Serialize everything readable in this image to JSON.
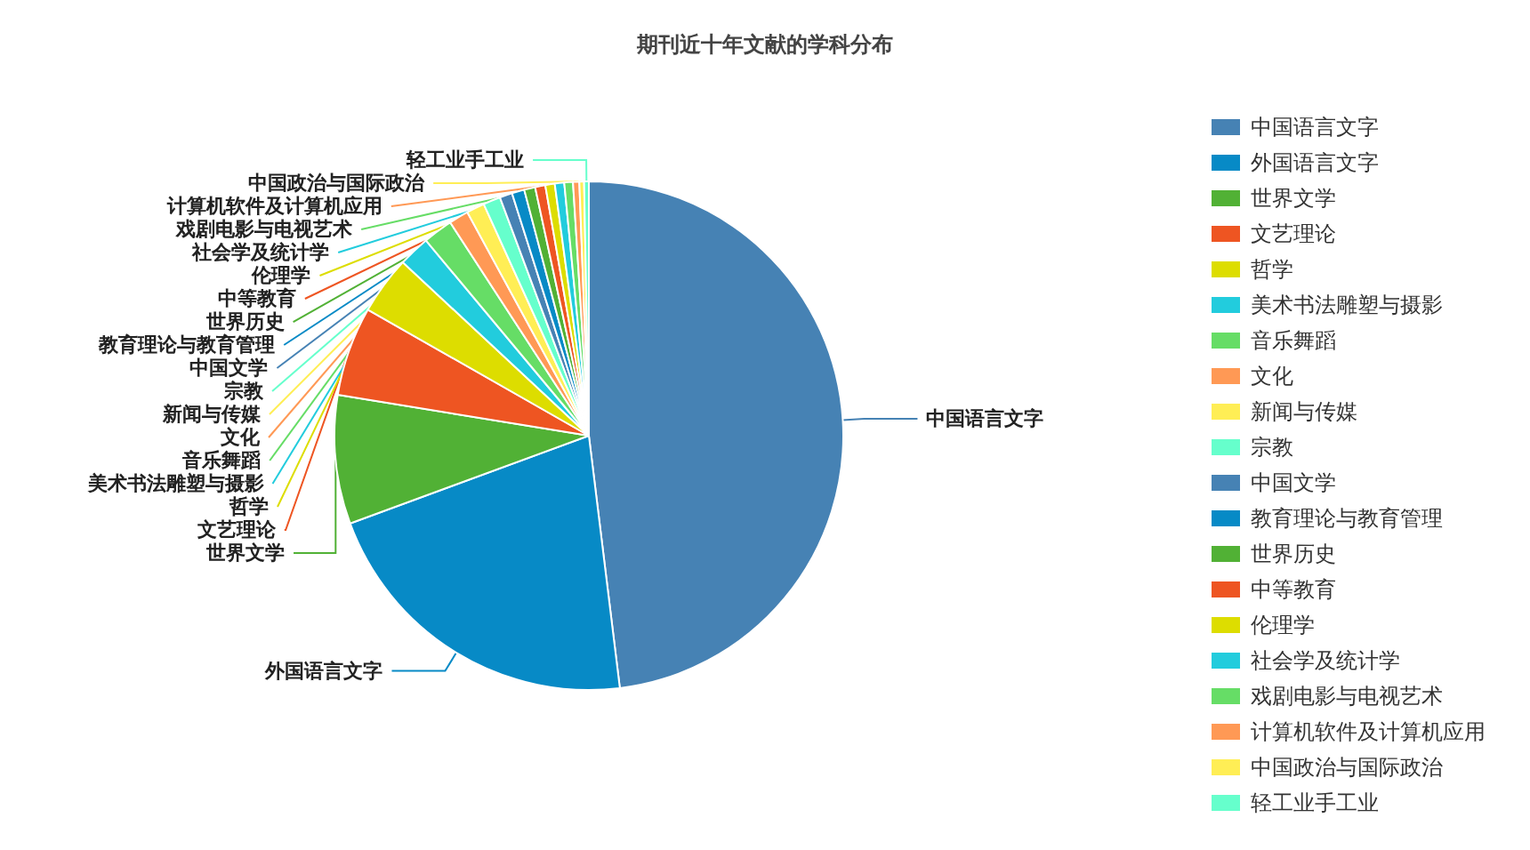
{
  "chart_data": {
    "type": "pie",
    "title": "期刊近十年文献的学科分布",
    "categories": [
      "中国语言文字",
      "外国语言文字",
      "世界文学",
      "文艺理论",
      "哲学",
      "美术书法雕塑与摄影",
      "音乐舞蹈",
      "文化",
      "新闻与传媒",
      "宗教",
      "中国文学",
      "教育理论与教育管理",
      "世界历史",
      "中等教育",
      "伦理学",
      "社会学及统计学",
      "戏剧电影与电视艺术",
      "计算机软件及计算机应用",
      "中国政治与国际政治",
      "轻工业手工业"
    ],
    "values": [
      48.2,
      21.4,
      8.2,
      5.7,
      3.7,
      2.0,
      1.9,
      1.25,
      1.15,
      1.1,
      0.8,
      0.8,
      0.7,
      0.65,
      0.6,
      0.6,
      0.55,
      0.4,
      0.3,
      0.3
    ],
    "colors": [
      "#4682b4",
      "#078ac6",
      "#51b135",
      "#ee5522",
      "#dddd00",
      "#22ccdd",
      "#66dd66",
      "#ff9955",
      "#ffee55",
      "#66ffcc",
      "#4682b4",
      "#078ac6",
      "#51b135",
      "#ee5522",
      "#dddd00",
      "#22ccdd",
      "#66dd66",
      "#ff9955",
      "#ffee55",
      "#66ffcc"
    ],
    "legend": "right"
  }
}
